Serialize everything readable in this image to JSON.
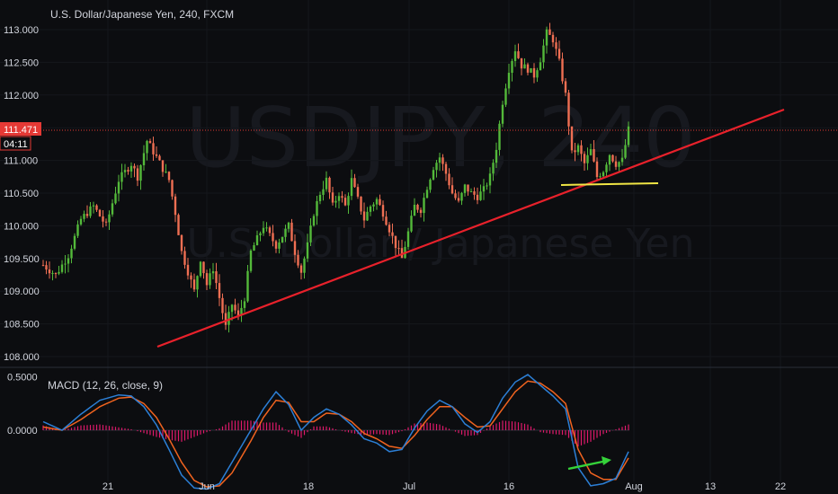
{
  "title": "U.S. Dollar/Japanese Yen, 240, FXCM",
  "watermark": {
    "symbol": "USDJPY, 240",
    "name": "U.S. Dollar / Japanese Yen"
  },
  "price_badge": {
    "price": "111.471",
    "countdown": "04:11",
    "color": "#e53935"
  },
  "macd_label": "MACD (12, 26, close, 9)",
  "colors": {
    "up": "#53b93a",
    "down": "#ef6f53",
    "trend_line": "#e8212b",
    "support_line": "#f1e645",
    "macd_line": "#2c7fd6",
    "signal_line": "#f0631f",
    "hist": "#e0196b",
    "arrow": "#35d23a"
  },
  "chart_data": [
    {
      "type": "candlestick",
      "title": "U.S. Dollar/Japanese Yen, 240, FXCM",
      "xlabel": "",
      "ylabel": "",
      "ylim": [
        107.95,
        113.2
      ],
      "y_ticks": [
        "113.000",
        "112.500",
        "112.000",
        "111.500",
        "111.000",
        "110.500",
        "110.000",
        "109.500",
        "109.000",
        "108.500",
        "108.000"
      ],
      "x_ticks": [
        "21",
        "Jun",
        "18",
        "Jul",
        "16",
        "Aug",
        "13",
        "22"
      ],
      "close_path": [
        [
          0,
          109.4
        ],
        [
          4,
          109.25
        ],
        [
          8,
          109.55
        ],
        [
          12,
          110.1
        ],
        [
          16,
          110.3
        ],
        [
          20,
          110.0
        ],
        [
          24,
          110.7
        ],
        [
          28,
          110.95
        ],
        [
          30,
          110.75
        ],
        [
          33,
          111.3
        ],
        [
          36,
          111.05
        ],
        [
          40,
          110.7
        ],
        [
          42,
          110.2
        ],
        [
          44,
          109.6
        ],
        [
          46,
          109.3
        ],
        [
          48,
          109.0
        ],
        [
          50,
          109.5
        ],
        [
          52,
          109.1
        ],
        [
          54,
          109.35
        ],
        [
          56,
          108.9
        ],
        [
          58,
          108.45
        ],
        [
          60,
          108.8
        ],
        [
          62,
          108.6
        ],
        [
          64,
          108.9
        ],
        [
          66,
          109.6
        ],
        [
          70,
          110.0
        ],
        [
          74,
          109.7
        ],
        [
          78,
          110.0
        ],
        [
          80,
          109.6
        ],
        [
          82,
          109.3
        ],
        [
          84,
          109.7
        ],
        [
          86,
          110.2
        ],
        [
          88,
          110.5
        ],
        [
          90,
          110.7
        ],
        [
          92,
          110.3
        ],
        [
          94,
          110.5
        ],
        [
          96,
          110.3
        ],
        [
          98,
          110.7
        ],
        [
          100,
          110.4
        ],
        [
          102,
          110.1
        ],
        [
          104,
          110.3
        ],
        [
          106,
          110.4
        ],
        [
          108,
          110.2
        ],
        [
          110,
          109.95
        ],
        [
          112,
          109.7
        ],
        [
          114,
          109.5
        ],
        [
          116,
          109.9
        ],
        [
          118,
          110.3
        ],
        [
          120,
          110.25
        ],
        [
          122,
          110.6
        ],
        [
          124,
          110.9
        ],
        [
          126,
          111.05
        ],
        [
          128,
          110.8
        ],
        [
          130,
          110.5
        ],
        [
          132,
          110.35
        ],
        [
          134,
          110.6
        ],
        [
          136,
          110.5
        ],
        [
          138,
          110.45
        ],
        [
          140,
          110.55
        ],
        [
          142,
          110.75
        ],
        [
          144,
          111.2
        ],
        [
          146,
          111.9
        ],
        [
          148,
          112.4
        ],
        [
          150,
          112.7
        ],
        [
          152,
          112.45
        ],
        [
          154,
          112.4
        ],
        [
          156,
          112.3
        ],
        [
          158,
          112.55
        ],
        [
          160,
          112.95
        ],
        [
          162,
          112.85
        ],
        [
          164,
          112.5
        ],
        [
          166,
          112.0
        ],
        [
          168,
          111.1
        ],
        [
          170,
          111.2
        ],
        [
          172,
          110.95
        ],
        [
          174,
          111.15
        ],
        [
          176,
          110.75
        ],
        [
          178,
          110.85
        ],
        [
          180,
          111.1
        ],
        [
          182,
          110.95
        ],
        [
          184,
          111.0
        ],
        [
          186,
          111.47
        ]
      ]
    },
    {
      "type": "line",
      "title": "MACD (12, 26, close, 9)",
      "ylim": [
        -0.62,
        0.55
      ],
      "y_ticks": [
        "0.5000",
        "0.0000"
      ],
      "series": [
        {
          "values": [
            [
              0,
              0.08
            ],
            [
              6,
              0.0
            ],
            [
              12,
              0.15
            ],
            [
              18,
              0.28
            ],
            [
              24,
              0.33
            ],
            [
              28,
              0.32
            ],
            [
              32,
              0.22
            ],
            [
              36,
              0.05
            ],
            [
              40,
              -0.18
            ],
            [
              44,
              -0.42
            ],
            [
              48,
              -0.54
            ],
            [
              52,
              -0.55
            ],
            [
              56,
              -0.5
            ],
            [
              60,
              -0.3
            ],
            [
              66,
              0.0
            ],
            [
              70,
              0.2
            ],
            [
              74,
              0.36
            ],
            [
              78,
              0.24
            ],
            [
              82,
              0.0
            ],
            [
              86,
              0.12
            ],
            [
              90,
              0.2
            ],
            [
              94,
              0.15
            ],
            [
              98,
              0.05
            ],
            [
              102,
              -0.08
            ],
            [
              106,
              -0.12
            ],
            [
              110,
              -0.2
            ],
            [
              114,
              -0.18
            ],
            [
              118,
              0.02
            ],
            [
              122,
              0.18
            ],
            [
              126,
              0.28
            ],
            [
              130,
              0.22
            ],
            [
              134,
              0.06
            ],
            [
              138,
              -0.02
            ],
            [
              142,
              0.08
            ],
            [
              146,
              0.3
            ],
            [
              150,
              0.45
            ],
            [
              154,
              0.52
            ],
            [
              158,
              0.42
            ],
            [
              162,
              0.32
            ],
            [
              166,
              0.2
            ],
            [
              170,
              -0.35
            ],
            [
              174,
              -0.52
            ],
            [
              178,
              -0.5
            ],
            [
              182,
              -0.45
            ],
            [
              186,
              -0.2
            ]
          ]
        },
        {
          "values": [
            [
              0,
              0.03
            ],
            [
              6,
              0.0
            ],
            [
              12,
              0.1
            ],
            [
              18,
              0.22
            ],
            [
              24,
              0.3
            ],
            [
              28,
              0.31
            ],
            [
              32,
              0.25
            ],
            [
              36,
              0.12
            ],
            [
              40,
              -0.08
            ],
            [
              44,
              -0.3
            ],
            [
              48,
              -0.47
            ],
            [
              52,
              -0.53
            ],
            [
              56,
              -0.52
            ],
            [
              60,
              -0.4
            ],
            [
              66,
              -0.1
            ],
            [
              70,
              0.12
            ],
            [
              74,
              0.28
            ],
            [
              78,
              0.26
            ],
            [
              82,
              0.08
            ],
            [
              86,
              0.08
            ],
            [
              90,
              0.16
            ],
            [
              94,
              0.15
            ],
            [
              98,
              0.08
            ],
            [
              102,
              -0.03
            ],
            [
              106,
              -0.08
            ],
            [
              110,
              -0.15
            ],
            [
              114,
              -0.17
            ],
            [
              118,
              -0.05
            ],
            [
              122,
              0.1
            ],
            [
              126,
              0.22
            ],
            [
              130,
              0.22
            ],
            [
              134,
              0.12
            ],
            [
              138,
              0.03
            ],
            [
              142,
              0.04
            ],
            [
              146,
              0.2
            ],
            [
              150,
              0.36
            ],
            [
              154,
              0.46
            ],
            [
              158,
              0.44
            ],
            [
              162,
              0.36
            ],
            [
              166,
              0.25
            ],
            [
              170,
              -0.18
            ],
            [
              174,
              -0.4
            ],
            [
              178,
              -0.46
            ],
            [
              182,
              -0.46
            ],
            [
              186,
              -0.26
            ]
          ]
        }
      ]
    }
  ]
}
